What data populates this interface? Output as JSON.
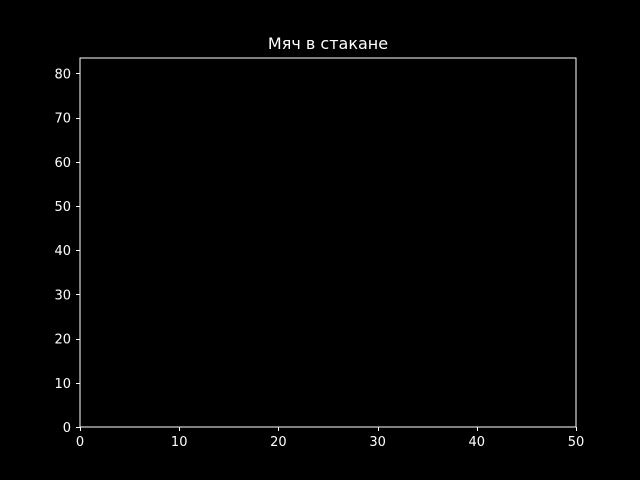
{
  "chart_data": {
    "type": "scatter",
    "title": "Мяч в стакане",
    "xlabel": "",
    "ylabel": "",
    "xlim": [
      0,
      50
    ],
    "ylim": [
      0,
      83.5
    ],
    "xticks": [
      0,
      10,
      20,
      30,
      40,
      50
    ],
    "yticks": [
      0,
      10,
      20,
      30,
      40,
      50,
      60,
      70,
      80
    ],
    "series": [],
    "grid": false,
    "background_color": "#000000",
    "foreground_color": "#ffffff"
  }
}
